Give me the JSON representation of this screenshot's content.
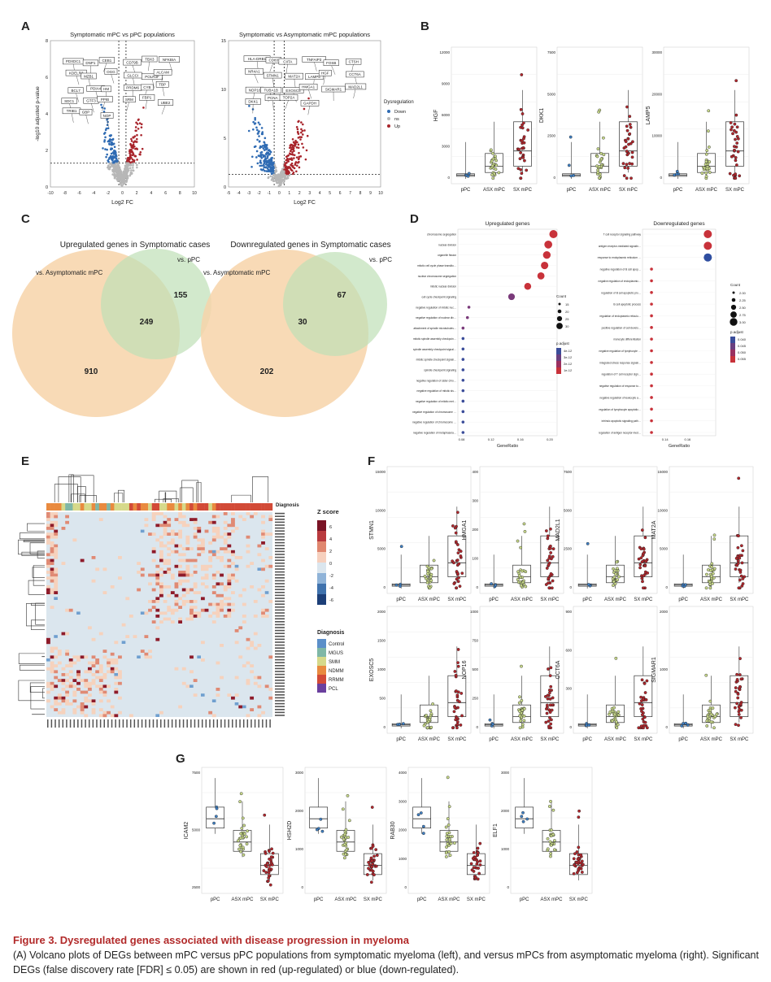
{
  "panel_letters": [
    "A",
    "B",
    "C",
    "D",
    "E",
    "F",
    "G"
  ],
  "caption": {
    "title": "Figure 3. Dysregulated genes associated with disease progression in myeloma",
    "text": "(A) Volcano plots of DEGs between mPC versus pPC populations from symptomatic myeloma (left), and versus mPCs from asymptomatic myeloma (right). Significant DEGs (false discovery rate [FDR] ≤ 0.05) are shown in red (up-regulated) or blue (down-regulated)."
  },
  "colors": {
    "up": "#a8242b",
    "down": "#2f6bb3",
    "ns": "#b7b7b7",
    "venn_orange": "#f7d3a9",
    "venn_green": "#bfe0b7",
    "caption_red": "#b22a2a",
    "pPC": "#3f7fc2",
    "ASX": "#c8d98a",
    "SX": "#b2262c"
  },
  "chart_data": [
    {
      "panel": "A",
      "type": "scatter",
      "title": "Symptomatic mPC vs pPC populations",
      "xlabel": "Log2 FC",
      "ylabel": "-log10 adjusted p-value",
      "xlim": [
        -10,
        10
      ],
      "ylim": [
        0,
        8
      ],
      "xticks": [
        "-10",
        "-8",
        "-6",
        "-4",
        "-2",
        "0",
        "2",
        "4",
        "6",
        "8",
        "10"
      ],
      "yticks": [
        "0",
        "2",
        "4",
        "6",
        "8"
      ],
      "labels": [
        "PDXDC1",
        "DNP1",
        "CEB1",
        "CD79B",
        "TBX3",
        "NFKBIA",
        "KDELR3",
        "MZB1",
        "OGG",
        "GLCCI",
        "POLR3F",
        "ALCAM",
        "BCL7",
        "PDIA4",
        "HM",
        "PRDM6",
        "CYB",
        "TBP",
        "SDC1",
        "GTF3",
        "PPIB",
        "SRM",
        "FBP1",
        "UBE2",
        "TRIB1",
        "GBP",
        "NOP"
      ]
    },
    {
      "panel": "A",
      "type": "scatter",
      "title": "Symptomatic vs Asymptomatic mPC populations",
      "xlabel": "Log2 FC",
      "ylabel": "",
      "xlim": [
        -5,
        10
      ],
      "ylim": [
        0,
        15
      ],
      "xticks": [
        "-5",
        "-4",
        "-3",
        "-2",
        "-1",
        "0",
        "1",
        "2",
        "3",
        "4",
        "5",
        "6",
        "7",
        "8",
        "9",
        "10"
      ],
      "yticks": [
        "0",
        "5",
        "10",
        "15"
      ],
      "legend": {
        "title": "Dysregulation",
        "items": [
          "Down",
          "ns",
          "Up"
        ],
        "position": "right"
      },
      "labels": [
        "HLA-DRB1",
        "CD83",
        "CIITA",
        "TNFAIP3",
        "FOSB",
        "CTSH",
        "NR4A1",
        "STMN1",
        "MAT2A",
        "LAMP5",
        "HGF",
        "CCT6A",
        "NOP16",
        "TUBA1B",
        "EXOSC5",
        "HMGA1",
        "SIGMAR1",
        "MAD2L1",
        "DKK1",
        "PCNA",
        "TOP2A",
        "GAPDH"
      ]
    },
    {
      "panel": "B",
      "type": "box",
      "categories": [
        "pPC",
        "ASX mPC",
        "SX mPC"
      ],
      "plots": [
        {
          "gene": "HGF",
          "yticks": [
            "0",
            "3000",
            "6000",
            "9000",
            "12000"
          ]
        },
        {
          "gene": "DKK1",
          "yticks": [
            "0",
            "2500",
            "5000",
            "7500"
          ]
        },
        {
          "gene": "LAMP5",
          "yticks": [
            "0",
            "10000",
            "20000",
            "30000"
          ]
        }
      ]
    },
    {
      "panel": "C",
      "type": "venn",
      "venns": [
        {
          "title": "Upregulated genes in Symptomatic cases",
          "left_label": "vs. Asymptomatic mPC",
          "right_label": "vs. pPC",
          "left": 910,
          "overlap": 249,
          "right": 155
        },
        {
          "title": "Downregulated genes in Symptomatic cases",
          "left_label": "vs. Asymptomatic mPC",
          "right_label": "vs. pPC",
          "left": 202,
          "overlap": 30,
          "right": 67
        }
      ]
    },
    {
      "panel": "D",
      "type": "scatter",
      "plots": [
        {
          "title": "Upregulated genes",
          "xlabel": "GeneRatio",
          "xticks": [
            "0.08",
            "0.12",
            "0.16",
            "0.20"
          ],
          "terms": [
            "chromosome segregation",
            "nuclear division",
            "organelle fission",
            "mitotic cell cycle phase transition",
            "nuclear chromosome segregation",
            "mitotic nuclear division",
            "cell cycle checkpoint signaling",
            "negative regulation of mitotic nuclear division",
            "negative regulation of nuclear division",
            "attachment of spindle microtubules to kinetochore",
            "mitotic spindle assembly checkpoint signaling",
            "spindle assembly checkpoint signaling",
            "mitotic spindle checkpoint signaling",
            "spindle checkpoint signaling",
            "negative regulation of sister chromatid segregation",
            "negative regulation of mitotic sister chromatid segregation",
            "negative regulation of mitotic metaphase/anaphase transition",
            "negative regulation of chromosome separation",
            "negative regulation of chromosome segregation",
            "negative regulation of metaphase/anaphase transition of cell cycle"
          ],
          "x": [
            0.205,
            0.198,
            0.196,
            0.193,
            0.188,
            0.17,
            0.148,
            0.09,
            0.088,
            0.082,
            0.082,
            0.082,
            0.082,
            0.082,
            0.082,
            0.082,
            0.082,
            0.082,
            0.082,
            0.082
          ],
          "legend": {
            "size_title": "Count",
            "size_items": [
              "15",
              "20",
              "25",
              "30"
            ],
            "color_title": "p.adjust",
            "color_items": [
              "4e-12",
              "3e-12",
              "2e-12",
              "1e-12"
            ]
          }
        },
        {
          "title": "Downregulated genes",
          "xlabel": "GeneRatio",
          "xticks": [
            "0.14",
            "0.16"
          ],
          "terms": [
            "T cell receptor signaling pathway",
            "antigen receptor-mediated signaling pathway",
            "response to endoplasmic reticulum stress",
            "negative regulation of B cell apoptotic process",
            "negative regulation of endoplasmic reticulum stress-induced intrinsic apoptotic signaling pathway",
            "regulation of B cell apoptotic process",
            "B cell apoptotic process",
            "regulation of endoplasmic reticulum stress-induced intrinsic apoptotic signaling pathway",
            "positive regulation of cell development",
            "monocyte differentiation",
            "negative regulation of lymphocyte apoptotic process",
            "integrated stress response signaling",
            "regulation of T cell receptor signaling pathway",
            "negative regulation of response to endoplasmic reticulum stress",
            "negative regulation of leukocyte apoptotic process",
            "regulation of lymphocyte apoptotic process",
            "intrinsic apoptotic signaling pathway in response to endoplasmic reticulum stress",
            "regulation of antigen receptor-mediated signaling pathway"
          ],
          "x": [
            0.178,
            0.178,
            0.178,
            0.128,
            0.128,
            0.128,
            0.128,
            0.128,
            0.128,
            0.128,
            0.128,
            0.128,
            0.128,
            0.128,
            0.128,
            0.128,
            0.128,
            0.128
          ],
          "legend": {
            "size_title": "Count",
            "size_items": [
              "2.00",
              "2.25",
              "2.50",
              "2.75",
              "3.00"
            ],
            "color_title": "p.adjust",
            "color_items": [
              "0.040",
              "0.045",
              "0.050",
              "0.055"
            ]
          }
        }
      ]
    },
    {
      "panel": "E",
      "type": "heatmap",
      "legend_title": "Z score",
      "scale": [
        "6",
        "4",
        "2",
        "0",
        "-2",
        "-4",
        "-6"
      ],
      "column_annotation": "Diagnosis",
      "diagnosis": [
        "Control",
        "MGUS",
        "SMM",
        "NDMM",
        "RRMM",
        "PCL"
      ],
      "diagnosis_colors": [
        "#5b8fc9",
        "#7fb7a6",
        "#d6d98a",
        "#e98a3f",
        "#d24a37",
        "#6a3f9e"
      ]
    },
    {
      "panel": "F",
      "type": "box",
      "categories": [
        "pPC",
        "ASX mPC",
        "SX mPC"
      ],
      "plots": [
        {
          "gene": "STMN1",
          "yticks": [
            "0",
            "5000",
            "10000",
            "15000"
          ]
        },
        {
          "gene": "HMGA1",
          "yticks": [
            "0",
            "100",
            "200",
            "300",
            "400"
          ]
        },
        {
          "gene": "MAD2L1",
          "yticks": [
            "0",
            "2500",
            "5000",
            "7500"
          ]
        },
        {
          "gene": "MAT2A",
          "yticks": [
            "0",
            "5000",
            "10000",
            "15000"
          ]
        },
        {
          "gene": "EXOSC5",
          "yticks": [
            "0",
            "500",
            "1000",
            "1500",
            "2000"
          ]
        },
        {
          "gene": "NOP16",
          "yticks": [
            "0",
            "250",
            "500",
            "750",
            "1000"
          ]
        },
        {
          "gene": "CCT6A",
          "yticks": [
            "0",
            "300",
            "600",
            "900"
          ]
        },
        {
          "gene": "SIGMAR1",
          "yticks": [
            "0",
            "1000",
            "2000"
          ]
        }
      ]
    },
    {
      "panel": "G",
      "type": "box",
      "categories": [
        "pPC",
        "ASX mPC",
        "SX mPC"
      ],
      "plots": [
        {
          "gene": "ICAM2",
          "yticks": [
            "2500",
            "5000",
            "7500"
          ]
        },
        {
          "gene": "HSH2D",
          "yticks": [
            "0",
            "1000",
            "2000",
            "3000"
          ]
        },
        {
          "gene": "RAB30",
          "yticks": [
            "0",
            "1000",
            "2000",
            "3000",
            "4000"
          ]
        },
        {
          "gene": "ELF1",
          "yticks": [
            "0",
            "1000",
            "2000",
            "3000"
          ]
        }
      ]
    }
  ]
}
